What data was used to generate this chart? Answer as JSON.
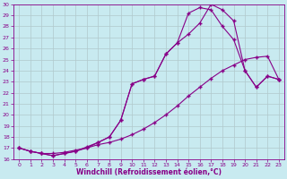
{
  "background_color": "#c8eaf0",
  "line_color": "#880088",
  "grid_color": "#b0c8cc",
  "xlabel": "Windchill (Refroidissement éolien,°C)",
  "xlim": [
    -0.5,
    23.5
  ],
  "ylim": [
    16,
    30
  ],
  "xticks": [
    0,
    1,
    2,
    3,
    4,
    5,
    6,
    7,
    8,
    9,
    10,
    11,
    12,
    13,
    14,
    15,
    16,
    17,
    18,
    19,
    20,
    21,
    22,
    23
  ],
  "yticks": [
    16,
    17,
    18,
    19,
    20,
    21,
    22,
    23,
    24,
    25,
    26,
    27,
    28,
    29,
    30
  ],
  "curve1_x": [
    0,
    1,
    2,
    3,
    4,
    5,
    6,
    7,
    8,
    9,
    10,
    11,
    12,
    13,
    14,
    15,
    16,
    17,
    18,
    19,
    20,
    21,
    22,
    23
  ],
  "curve1_y": [
    17.0,
    16.7,
    16.5,
    16.5,
    16.6,
    16.8,
    17.0,
    17.3,
    17.5,
    17.8,
    18.2,
    18.7,
    19.3,
    20.0,
    20.8,
    21.7,
    22.5,
    23.3,
    24.0,
    24.5,
    25.0,
    25.2,
    25.3,
    23.2
  ],
  "curve2_x": [
    0,
    1,
    2,
    3,
    4,
    5,
    6,
    7,
    8,
    9,
    10,
    11,
    12,
    13,
    14,
    15,
    16,
    17,
    18,
    19,
    20,
    21,
    22,
    23
  ],
  "curve2_y": [
    17.0,
    16.7,
    16.5,
    16.3,
    16.5,
    16.7,
    17.0,
    17.5,
    18.0,
    19.5,
    22.8,
    23.2,
    23.5,
    25.5,
    26.5,
    29.2,
    29.7,
    29.5,
    28.0,
    26.8,
    24.0,
    22.5,
    23.5,
    23.2
  ],
  "curve3_x": [
    0,
    1,
    2,
    3,
    4,
    5,
    6,
    7,
    8,
    9,
    10,
    11,
    12,
    13,
    14,
    15,
    16,
    17,
    18,
    19,
    20,
    21,
    22,
    23
  ],
  "curve3_y": [
    17.0,
    16.7,
    16.5,
    16.3,
    16.5,
    16.7,
    17.1,
    17.5,
    18.0,
    19.5,
    22.8,
    23.2,
    23.5,
    25.5,
    26.5,
    27.3,
    28.3,
    30.0,
    29.5,
    28.5,
    24.0,
    22.5,
    23.5,
    23.2
  ],
  "marker": "+",
  "markersize": 3,
  "markeredgewidth": 1.0,
  "linewidth": 0.8,
  "axis_fontsize": 5.5,
  "tick_fontsize": 4.5
}
